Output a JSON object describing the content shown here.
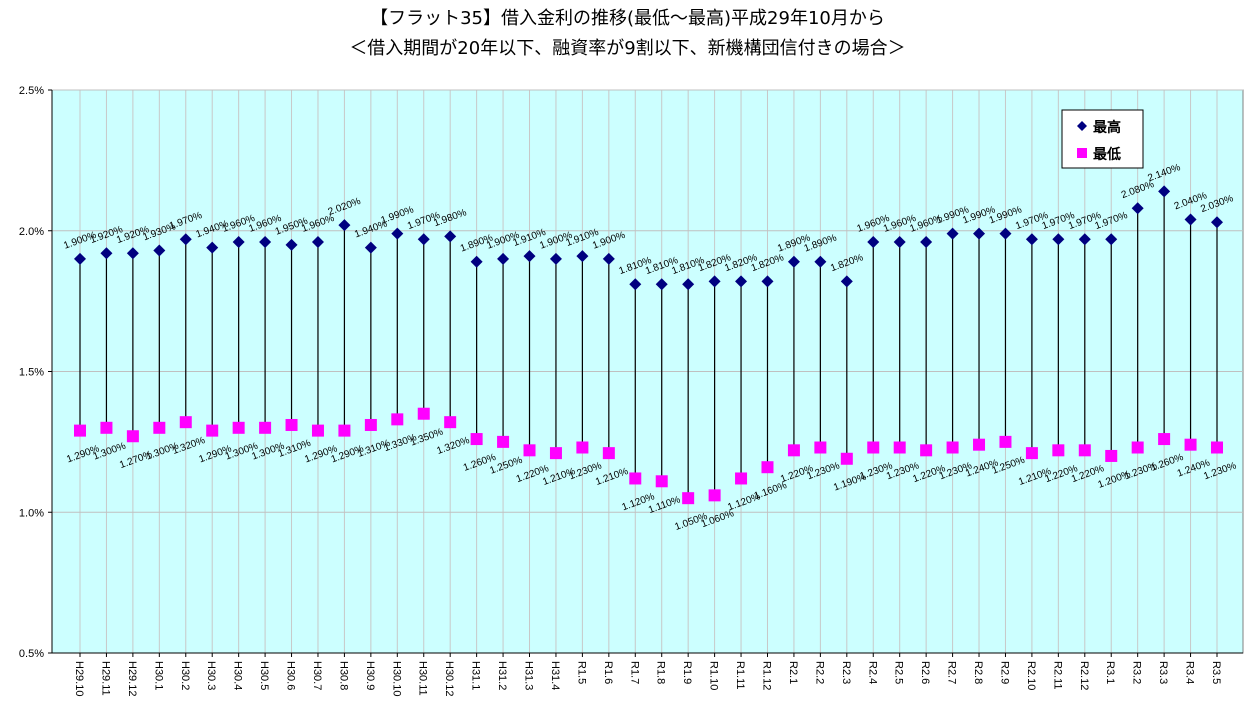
{
  "chart_data": {
    "type": "scatter",
    "title": "【フラット35】借入金利の推移(最低～最高)平成29年10月から",
    "subtitle": "＜借入期間が20年以下、融資率が9割以下、新機構団信付きの場合＞",
    "xlabel": "",
    "ylabel": "",
    "ylim": [
      0.5,
      2.5
    ],
    "yticks": [
      "0.5%",
      "1.0%",
      "1.5%",
      "2.0%",
      "2.5%"
    ],
    "ytick_values": [
      0.5,
      1.0,
      1.5,
      2.0,
      2.5
    ],
    "grid": true,
    "legend_position": "top-right",
    "categories": [
      "H29.10",
      "H29.11",
      "H29.12",
      "H30.1",
      "H30.2",
      "H30.3",
      "H30.4",
      "H30.5",
      "H30.6",
      "H30.7",
      "H30.8",
      "H30.9",
      "H30.10",
      "H30.11",
      "H30.12",
      "H31.1",
      "H31.2",
      "H31.3",
      "H31.4",
      "R1.5",
      "R1.6",
      "R1.7",
      "R1.8",
      "R1.9",
      "R1.10",
      "R1.11",
      "R1.12",
      "R2.1",
      "R2.2",
      "R2.3",
      "R2.4",
      "R2.5",
      "R2.6",
      "R2.7",
      "R2.8",
      "R2.9",
      "R2.10",
      "R2.11",
      "R2.12",
      "R3.1",
      "R3.2",
      "R3.3",
      "R3.4",
      "R3.5"
    ],
    "series": [
      {
        "name": "最高",
        "color": "#000080",
        "marker": "diamond",
        "values": [
          1.9,
          1.92,
          1.92,
          1.93,
          1.97,
          1.94,
          1.96,
          1.96,
          1.95,
          1.96,
          2.02,
          1.94,
          1.99,
          1.97,
          1.98,
          1.89,
          1.9,
          1.91,
          1.9,
          1.91,
          1.9,
          1.81,
          1.81,
          1.81,
          1.82,
          1.82,
          1.82,
          1.89,
          1.89,
          1.82,
          1.96,
          1.96,
          1.96,
          1.99,
          1.99,
          1.99,
          1.97,
          1.97,
          1.97,
          1.97,
          2.08,
          2.14,
          2.04,
          2.03
        ]
      },
      {
        "name": "最低",
        "color": "#ff00ff",
        "marker": "square",
        "values": [
          1.29,
          1.3,
          1.27,
          1.3,
          1.32,
          1.29,
          1.3,
          1.3,
          1.31,
          1.29,
          1.29,
          1.31,
          1.33,
          1.35,
          1.32,
          1.26,
          1.25,
          1.22,
          1.21,
          1.23,
          1.21,
          1.12,
          1.11,
          1.05,
          1.06,
          1.12,
          1.16,
          1.22,
          1.23,
          1.19,
          1.23,
          1.23,
          1.22,
          1.23,
          1.24,
          1.25,
          1.21,
          1.22,
          1.22,
          1.2,
          1.23,
          1.26,
          1.24,
          1.23
        ]
      }
    ]
  }
}
